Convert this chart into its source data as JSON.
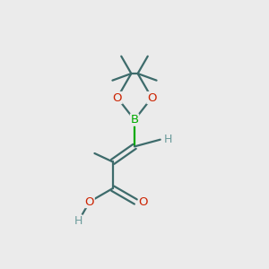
{
  "background_color": "#ebebeb",
  "bond_color": "#3d6b6b",
  "oxygen_color": "#cc2200",
  "boron_color": "#00aa00",
  "hydrogen_color": "#6b9b9b",
  "line_width": 1.6,
  "figsize": [
    3.0,
    3.0
  ],
  "dpi": 100,
  "xlim": [
    0,
    10
  ],
  "ylim": [
    0,
    10
  ]
}
